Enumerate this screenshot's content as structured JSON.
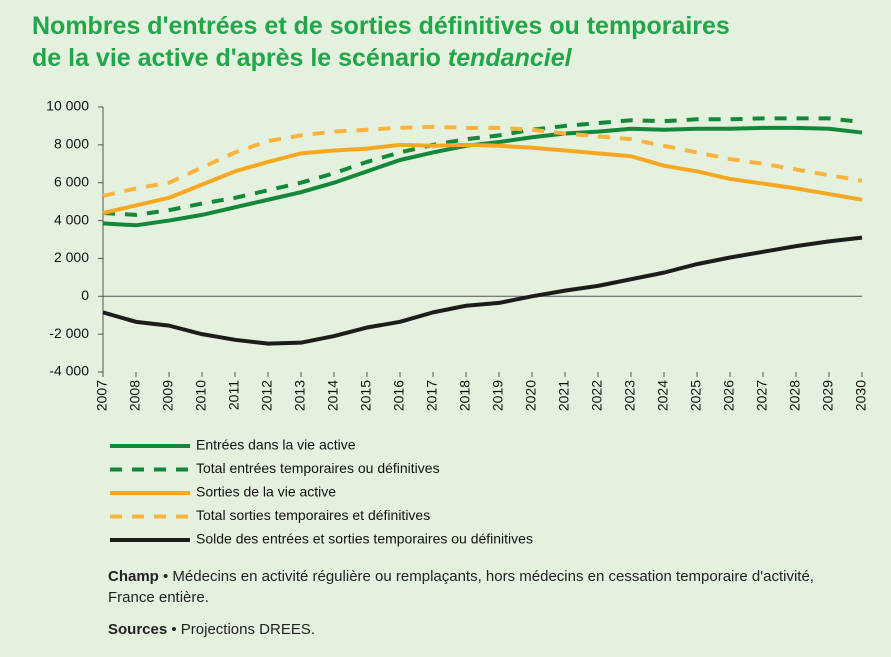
{
  "chart_data": {
    "type": "line",
    "title_lines": [
      "Nombres d'entrées et de sorties définitives ou temporaires",
      "de la vie active d'après le scénario"
    ],
    "title_emphasis": "tendanciel",
    "x": [
      2007,
      2008,
      2009,
      2010,
      2011,
      2012,
      2013,
      2014,
      2015,
      2016,
      2017,
      2018,
      2019,
      2020,
      2021,
      2022,
      2023,
      2024,
      2025,
      2026,
      2027,
      2028,
      2029,
      2030
    ],
    "xlim": [
      2007,
      2030
    ],
    "xticks": [
      2007,
      2008,
      2009,
      2010,
      2011,
      2012,
      2013,
      2014,
      2015,
      2016,
      2017,
      2018,
      2019,
      2020,
      2021,
      2022,
      2023,
      2024,
      2025,
      2026,
      2027,
      2028,
      2029,
      2030
    ],
    "ylim": [
      -4000,
      10000
    ],
    "yticks": [
      {
        "value": -4000,
        "label": "-4 000"
      },
      {
        "value": -2000,
        "label": "-2 000"
      },
      0,
      {
        "value": 2000,
        "label": "2 000"
      },
      {
        "value": 4000,
        "label": "4 000"
      },
      {
        "value": 6000,
        "label": "6 000"
      },
      {
        "value": 8000,
        "label": "8 000"
      },
      {
        "value": 10000,
        "label": "10 000"
      }
    ],
    "series": [
      {
        "name": "Entrées dans la vie active",
        "color": "#14883a",
        "dashed": false,
        "values": [
          3850,
          3750,
          4000,
          4300,
          4700,
          5100,
          5500,
          6000,
          6600,
          7200,
          7600,
          7950,
          8150,
          8400,
          8600,
          8700,
          8850,
          8800,
          8850,
          8850,
          8900,
          8900,
          8850,
          8650
        ]
      },
      {
        "name": "Total entrées temporaires ou définitives",
        "color": "#14883a",
        "dashed": true,
        "values": [
          4400,
          4300,
          4550,
          4900,
          5200,
          5600,
          6000,
          6500,
          7100,
          7600,
          8000,
          8300,
          8500,
          8800,
          9000,
          9150,
          9300,
          9250,
          9350,
          9350,
          9400,
          9400,
          9400,
          9200
        ]
      },
      {
        "name": "Sorties de la vie active",
        "color": "#f7a823",
        "dashed": false,
        "values": [
          4400,
          4800,
          5200,
          5900,
          6600,
          7100,
          7550,
          7700,
          7800,
          8000,
          7950,
          8000,
          7950,
          7850,
          7700,
          7550,
          7400,
          6900,
          6600,
          6200,
          5950,
          5700,
          5400,
          5100
        ]
      },
      {
        "name": "Total sorties temporaires et définitives",
        "color": "#fab33e",
        "dashed": true,
        "values": [
          5300,
          5700,
          6000,
          6800,
          7600,
          8200,
          8500,
          8700,
          8800,
          8900,
          8950,
          8900,
          8900,
          8800,
          8600,
          8450,
          8300,
          7950,
          7600,
          7250,
          7000,
          6700,
          6400,
          6100
        ]
      },
      {
        "name": "Solde des entrées et sorties temporaires ou définitives",
        "color": "#1c1c1c",
        "dashed": false,
        "values": [
          -850,
          -1350,
          -1550,
          -2000,
          -2300,
          -2500,
          -2450,
          -2100,
          -1650,
          -1350,
          -850,
          -500,
          -350,
          0,
          300,
          550,
          900,
          1250,
          1700,
          2050,
          2350,
          2650,
          2900,
          3100
        ]
      }
    ],
    "notes": [
      {
        "label": "Champ",
        "text": "• Médecins en activité régulière ou remplaçants, hors médecins en cessation temporaire d'activité, France entière."
      },
      {
        "label": "Sources",
        "text": "• Projections DREES."
      }
    ]
  }
}
